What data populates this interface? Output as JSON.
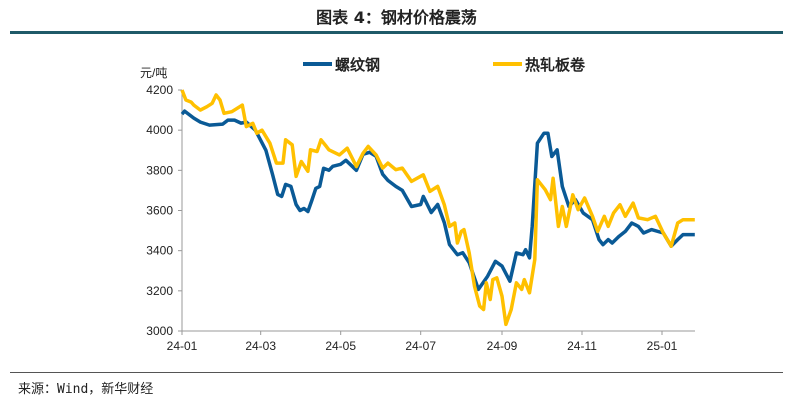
{
  "header": {
    "title": "图表 4：钢材价格震荡"
  },
  "footer": {
    "source": "来源：Wind，新华财经"
  },
  "chart_data": {
    "type": "line",
    "title": "图表 4：钢材价格震荡",
    "ylabel": "元/吨",
    "ylim": [
      3000,
      4200
    ],
    "yticks": [
      3000,
      3200,
      3400,
      3600,
      3800,
      4000,
      4200
    ],
    "xticks": [
      {
        "label": "24-01",
        "date": "2024-01-01"
      },
      {
        "label": "24-03",
        "date": "2024-03-01"
      },
      {
        "label": "24-05",
        "date": "2024-05-01"
      },
      {
        "label": "24-07",
        "date": "2024-07-01"
      },
      {
        "label": "24-09",
        "date": "2024-09-01"
      },
      {
        "label": "24-11",
        "date": "2024-11-01"
      },
      {
        "label": "25-01",
        "date": "2025-01-01"
      }
    ],
    "grid": false,
    "legend": "top",
    "series": [
      {
        "name": "螺纹钢",
        "color": "#0a5a96",
        "points": [
          [
            "2024-01-01",
            4080
          ],
          [
            "2024-01-03",
            4095
          ],
          [
            "2024-01-10",
            4060
          ],
          [
            "2024-01-15",
            4040
          ],
          [
            "2024-01-22",
            4025
          ],
          [
            "2024-02-01",
            4030
          ],
          [
            "2024-02-05",
            4050
          ],
          [
            "2024-02-10",
            4050
          ],
          [
            "2024-02-15",
            4035
          ],
          [
            "2024-02-19",
            4040
          ],
          [
            "2024-02-26",
            4000
          ],
          [
            "2024-03-05",
            3900
          ],
          [
            "2024-03-10",
            3780
          ],
          [
            "2024-03-14",
            3680
          ],
          [
            "2024-03-17",
            3670
          ],
          [
            "2024-03-20",
            3730
          ],
          [
            "2024-03-24",
            3720
          ],
          [
            "2024-03-28",
            3630
          ],
          [
            "2024-03-31",
            3600
          ],
          [
            "2024-04-03",
            3610
          ],
          [
            "2024-04-06",
            3595
          ],
          [
            "2024-04-09",
            3650
          ],
          [
            "2024-04-12",
            3710
          ],
          [
            "2024-04-15",
            3720
          ],
          [
            "2024-04-18",
            3810
          ],
          [
            "2024-04-22",
            3800
          ],
          [
            "2024-04-25",
            3820
          ],
          [
            "2024-05-01",
            3830
          ],
          [
            "2024-05-05",
            3850
          ],
          [
            "2024-05-13",
            3800
          ],
          [
            "2024-05-18",
            3880
          ],
          [
            "2024-05-23",
            3890
          ],
          [
            "2024-05-28",
            3870
          ],
          [
            "2024-06-02",
            3780
          ],
          [
            "2024-06-06",
            3750
          ],
          [
            "2024-06-12",
            3720
          ],
          [
            "2024-06-17",
            3700
          ],
          [
            "2024-06-24",
            3620
          ],
          [
            "2024-07-01",
            3630
          ],
          [
            "2024-07-03",
            3670
          ],
          [
            "2024-07-09",
            3590
          ],
          [
            "2024-07-14",
            3630
          ],
          [
            "2024-07-19",
            3540
          ],
          [
            "2024-07-23",
            3430
          ],
          [
            "2024-07-29",
            3380
          ],
          [
            "2024-08-02",
            3390
          ],
          [
            "2024-08-07",
            3340
          ],
          [
            "2024-08-14",
            3207
          ],
          [
            "2024-08-21",
            3273
          ],
          [
            "2024-08-27",
            3347
          ],
          [
            "2024-09-01",
            3323
          ],
          [
            "2024-09-07",
            3248
          ],
          [
            "2024-09-12",
            3389
          ],
          [
            "2024-09-17",
            3380
          ],
          [
            "2024-09-19",
            3405
          ],
          [
            "2024-09-22",
            3364
          ],
          [
            "2024-09-24",
            3521
          ],
          [
            "2024-09-28",
            3935
          ],
          [
            "2024-10-03",
            3985
          ],
          [
            "2024-10-06",
            3985
          ],
          [
            "2024-10-09",
            3869
          ],
          [
            "2024-10-13",
            3902
          ],
          [
            "2024-10-17",
            3720
          ],
          [
            "2024-10-22",
            3620
          ],
          [
            "2024-10-27",
            3654
          ],
          [
            "2024-11-02",
            3587
          ],
          [
            "2024-11-09",
            3554
          ],
          [
            "2024-11-14",
            3455
          ],
          [
            "2024-11-17",
            3430
          ],
          [
            "2024-11-21",
            3455
          ],
          [
            "2024-11-24",
            3438
          ],
          [
            "2024-11-29",
            3470
          ],
          [
            "2024-12-04",
            3496
          ],
          [
            "2024-12-09",
            3538
          ],
          [
            "2024-12-14",
            3521
          ],
          [
            "2024-12-18",
            3488
          ],
          [
            "2024-12-24",
            3505
          ],
          [
            "2025-01-02",
            3488
          ],
          [
            "2025-01-08",
            3422
          ],
          [
            "2025-01-13",
            3455
          ],
          [
            "2025-01-17",
            3480
          ],
          [
            "2025-01-26",
            3480
          ]
        ]
      },
      {
        "name": "热轧板卷",
        "color": "#ffc000",
        "points": [
          [
            "2024-01-01",
            4200
          ],
          [
            "2024-01-04",
            4150
          ],
          [
            "2024-01-08",
            4140
          ],
          [
            "2024-01-10",
            4125
          ],
          [
            "2024-01-15",
            4100
          ],
          [
            "2024-01-20",
            4117
          ],
          [
            "2024-01-24",
            4134
          ],
          [
            "2024-01-27",
            4175
          ],
          [
            "2024-01-30",
            4150
          ],
          [
            "2024-02-02",
            4084
          ],
          [
            "2024-02-08",
            4092
          ],
          [
            "2024-02-16",
            4125
          ],
          [
            "2024-02-19",
            4018
          ],
          [
            "2024-02-24",
            4034
          ],
          [
            "2024-02-27",
            3985
          ],
          [
            "2024-03-02",
            4000
          ],
          [
            "2024-03-08",
            3935
          ],
          [
            "2024-03-13",
            3836
          ],
          [
            "2024-03-18",
            3836
          ],
          [
            "2024-03-20",
            3952
          ],
          [
            "2024-03-25",
            3927
          ],
          [
            "2024-03-28",
            3770
          ],
          [
            "2024-04-01",
            3844
          ],
          [
            "2024-04-06",
            3795
          ],
          [
            "2024-04-08",
            3902
          ],
          [
            "2024-04-13",
            3894
          ],
          [
            "2024-04-16",
            3952
          ],
          [
            "2024-04-20",
            3919
          ],
          [
            "2024-04-22",
            3902
          ],
          [
            "2024-04-30",
            3877
          ],
          [
            "2024-05-06",
            3910
          ],
          [
            "2024-05-13",
            3819
          ],
          [
            "2024-05-18",
            3885
          ],
          [
            "2024-05-22",
            3919
          ],
          [
            "2024-05-28",
            3877
          ],
          [
            "2024-06-02",
            3811
          ],
          [
            "2024-06-06",
            3836
          ],
          [
            "2024-06-12",
            3803
          ],
          [
            "2024-06-17",
            3811
          ],
          [
            "2024-06-24",
            3745
          ],
          [
            "2024-07-03",
            3778
          ],
          [
            "2024-07-08",
            3695
          ],
          [
            "2024-07-14",
            3720
          ],
          [
            "2024-07-19",
            3629
          ],
          [
            "2024-07-23",
            3521
          ],
          [
            "2024-07-27",
            3538
          ],
          [
            "2024-07-29",
            3438
          ],
          [
            "2024-08-01",
            3496
          ],
          [
            "2024-08-03",
            3505
          ],
          [
            "2024-08-07",
            3389
          ],
          [
            "2024-08-11",
            3223
          ],
          [
            "2024-08-15",
            3124
          ],
          [
            "2024-08-18",
            3107
          ],
          [
            "2024-08-20",
            3240
          ],
          [
            "2024-08-23",
            3157
          ],
          [
            "2024-08-25",
            3256
          ],
          [
            "2024-08-28",
            3265
          ],
          [
            "2024-09-01",
            3174
          ],
          [
            "2024-09-04",
            3033
          ],
          [
            "2024-09-08",
            3107
          ],
          [
            "2024-09-12",
            3240
          ],
          [
            "2024-09-16",
            3207
          ],
          [
            "2024-09-18",
            3256
          ],
          [
            "2024-09-22",
            3190
          ],
          [
            "2024-09-26",
            3356
          ],
          [
            "2024-09-28",
            3753
          ],
          [
            "2024-10-04",
            3703
          ],
          [
            "2024-10-08",
            3654
          ],
          [
            "2024-10-10",
            3761
          ],
          [
            "2024-10-14",
            3521
          ],
          [
            "2024-10-17",
            3620
          ],
          [
            "2024-10-20",
            3521
          ],
          [
            "2024-10-25",
            3678
          ],
          [
            "2024-10-29",
            3604
          ],
          [
            "2024-11-03",
            3662
          ],
          [
            "2024-11-09",
            3571
          ],
          [
            "2024-11-13",
            3496
          ],
          [
            "2024-11-18",
            3571
          ],
          [
            "2024-11-21",
            3521
          ],
          [
            "2024-11-25",
            3587
          ],
          [
            "2024-11-30",
            3629
          ],
          [
            "2024-12-04",
            3571
          ],
          [
            "2024-12-10",
            3637
          ],
          [
            "2024-12-14",
            3563
          ],
          [
            "2024-12-21",
            3554
          ],
          [
            "2024-12-27",
            3571
          ],
          [
            "2025-01-02",
            3488
          ],
          [
            "2025-01-08",
            3422
          ],
          [
            "2025-01-13",
            3538
          ],
          [
            "2025-01-17",
            3554
          ],
          [
            "2025-01-26",
            3554
          ]
        ]
      }
    ]
  }
}
